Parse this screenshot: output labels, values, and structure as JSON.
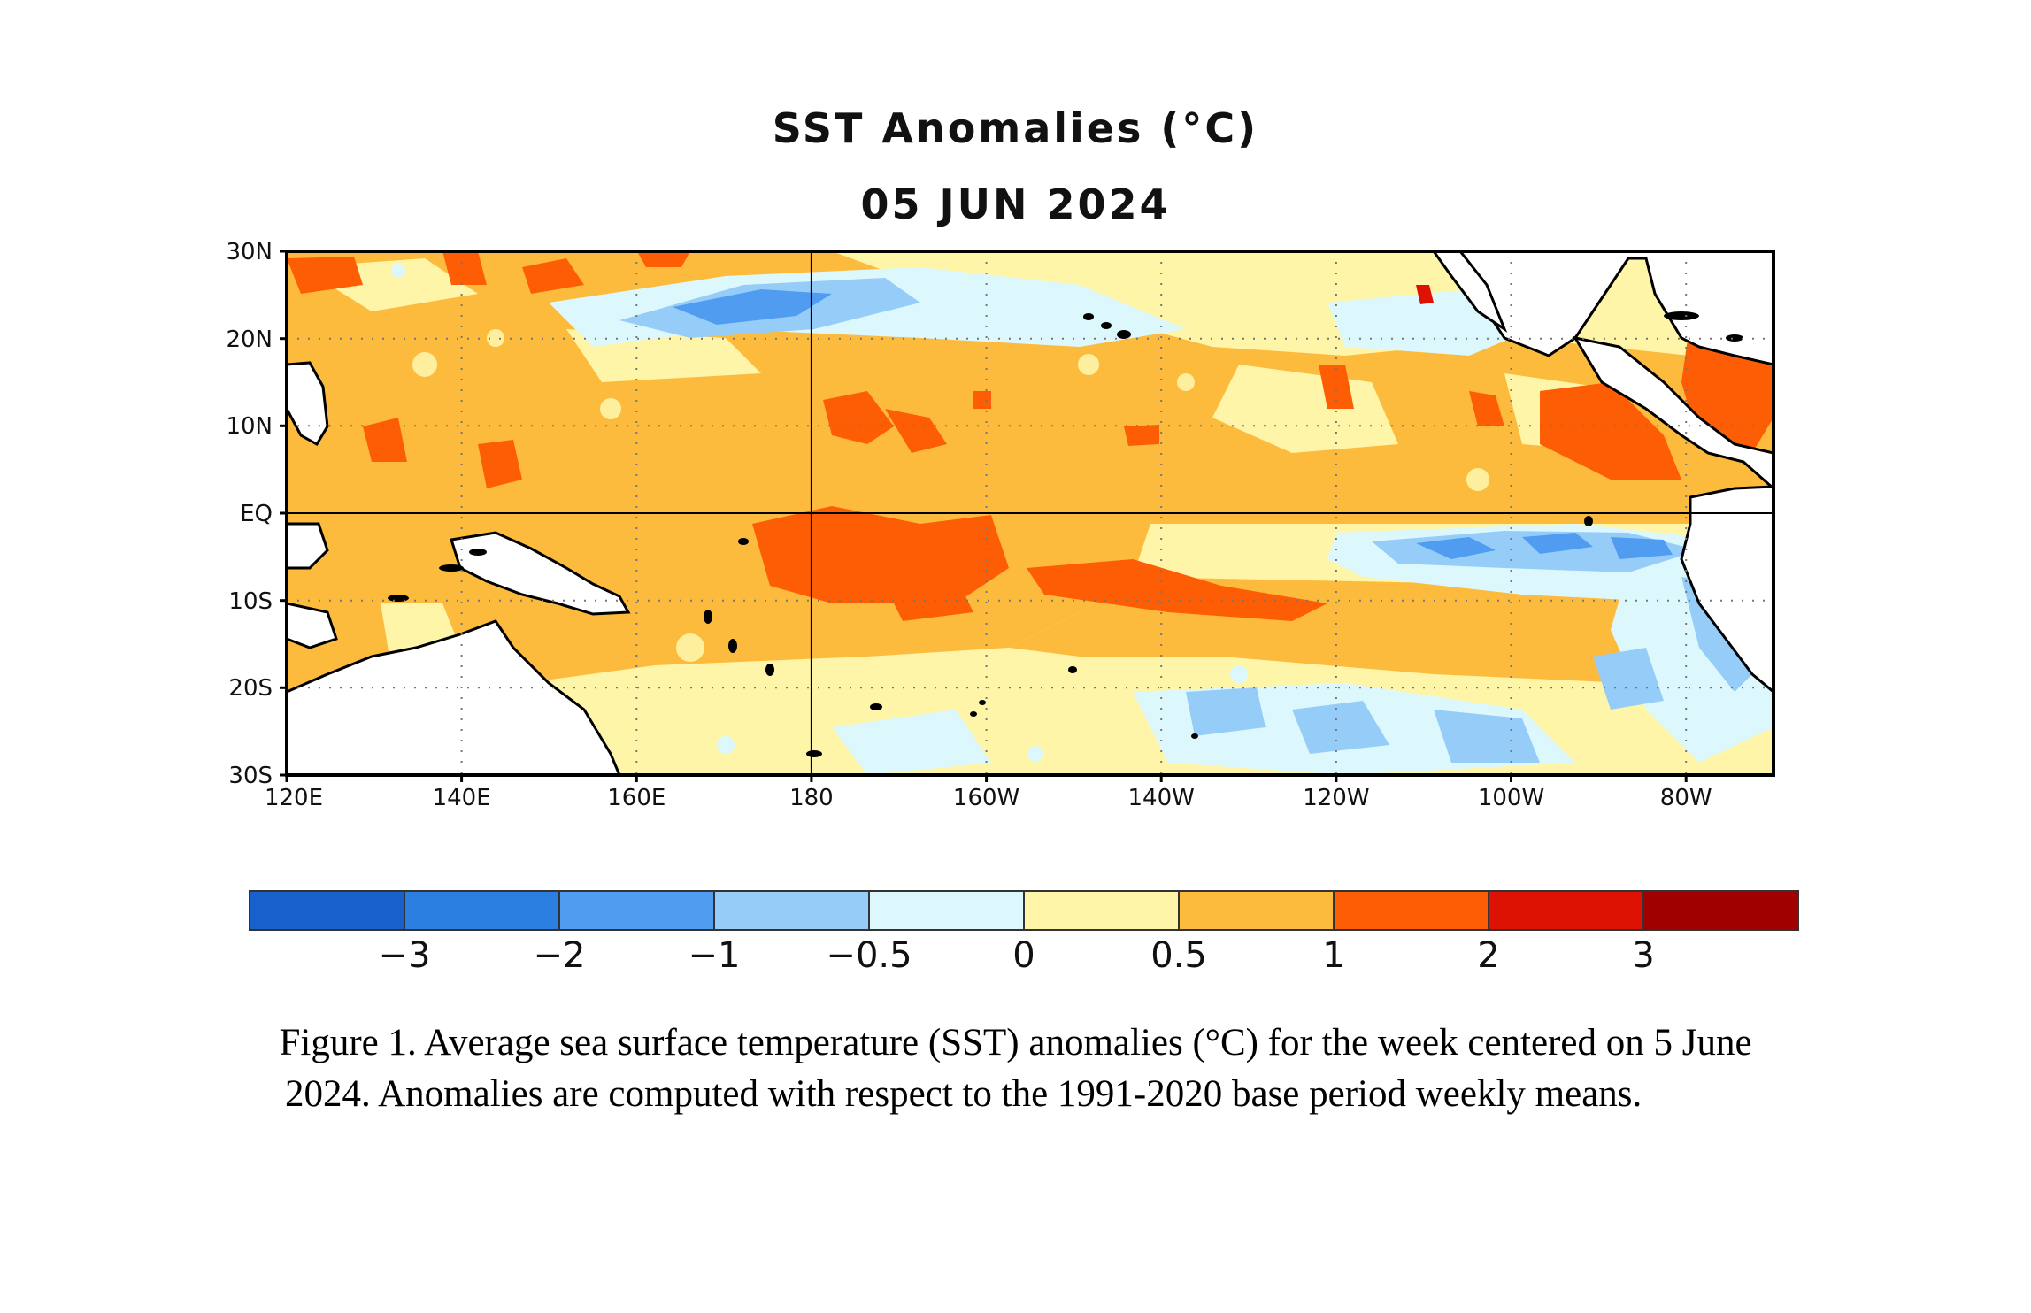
{
  "title": "SST Anomalies (°C)",
  "subtitle": "05 JUN 2024",
  "map": {
    "lon_range": [
      120,
      290
    ],
    "lat_range": [
      -30,
      30
    ],
    "lat_ticks": [
      "30N",
      "20N",
      "10N",
      "EQ",
      "10S",
      "20S",
      "30S"
    ],
    "lon_ticks": [
      "120E",
      "140E",
      "160E",
      "180",
      "160W",
      "140W",
      "120W",
      "100W",
      "80W"
    ],
    "gridlines": "dotted",
    "reference_lines": [
      "EQ",
      "180"
    ]
  },
  "colorbar": {
    "colors": [
      "#1860cc",
      "#2b7fe0",
      "#4f9cf0",
      "#96cdf8",
      "#ddf8fd",
      "#fef5a8",
      "#fdbb3e",
      "#fd5e05",
      "#dd1202",
      "#a00000"
    ],
    "labels": [
      "−3",
      "−2",
      "−1",
      "−0.5",
      "0",
      "0.5",
      "1",
      "2",
      "3"
    ]
  },
  "caption": {
    "line1": "Figure 1. Average sea surface temperature (SST) anomalies (°C) for the week centered on 5 June",
    "line2": "2024.  Anomalies are computed with respect to the 1991-2020 base period weekly means."
  }
}
